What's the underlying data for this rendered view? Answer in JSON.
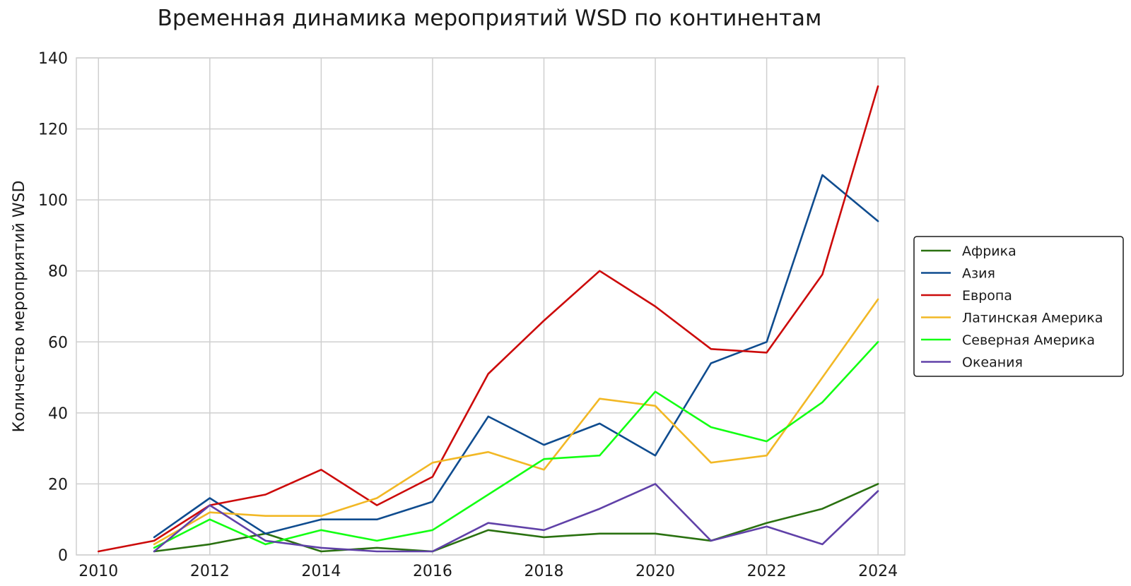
{
  "chart_data": {
    "type": "line",
    "title": "Временная динамика мероприятий WSD по континентам",
    "xlabel": "",
    "ylabel": "Количество мероприятий WSD",
    "xlim": [
      2010,
      2024
    ],
    "ylim": [
      0,
      140
    ],
    "x_ticks": [
      2010,
      2012,
      2014,
      2016,
      2018,
      2020,
      2022,
      2024
    ],
    "y_ticks": [
      0,
      20,
      40,
      60,
      80,
      100,
      120,
      140
    ],
    "grid": true,
    "legend_position": "right",
    "series": [
      {
        "name": "Африка",
        "color": "#2a7110",
        "x": [
          2011,
          2012,
          2013,
          2014,
          2015,
          2016,
          2017,
          2018,
          2019,
          2020,
          2021,
          2022,
          2023,
          2024
        ],
        "values": [
          1,
          3,
          6,
          1,
          2,
          1,
          7,
          5,
          6,
          6,
          4,
          9,
          13,
          20
        ]
      },
      {
        "name": "Азия",
        "color": "#0f4c8f",
        "x": [
          2011,
          2012,
          2013,
          2014,
          2015,
          2016,
          2017,
          2018,
          2019,
          2020,
          2021,
          2022,
          2023,
          2024
        ],
        "values": [
          5,
          16,
          6,
          10,
          10,
          15,
          39,
          31,
          37,
          28,
          54,
          60,
          107,
          94
        ]
      },
      {
        "name": "Европа",
        "color": "#cc0a0a",
        "x": [
          2010,
          2011,
          2012,
          2013,
          2014,
          2015,
          2016,
          2017,
          2018,
          2019,
          2020,
          2021,
          2022,
          2023,
          2024
        ],
        "values": [
          1,
          4,
          14,
          17,
          24,
          14,
          22,
          51,
          66,
          80,
          70,
          58,
          57,
          79,
          132
        ]
      },
      {
        "name": "Латинская Америка",
        "color": "#f2b825",
        "x": [
          2011,
          2012,
          2013,
          2014,
          2015,
          2016,
          2017,
          2018,
          2019,
          2020,
          2021,
          2022,
          2023,
          2024
        ],
        "values": [
          3,
          12,
          11,
          11,
          16,
          26,
          29,
          24,
          44,
          42,
          26,
          28,
          50,
          72
        ]
      },
      {
        "name": "Северная Америка",
        "color": "#13ff13",
        "x": [
          2011,
          2012,
          2013,
          2014,
          2015,
          2016,
          2017,
          2018,
          2019,
          2020,
          2021,
          2022,
          2023,
          2024
        ],
        "values": [
          2,
          10,
          3,
          7,
          4,
          7,
          17,
          27,
          28,
          46,
          36,
          32,
          43,
          60
        ]
      },
      {
        "name": "Океания",
        "color": "#6041a8",
        "x": [
          2011,
          2012,
          2013,
          2014,
          2015,
          2016,
          2017,
          2018,
          2019,
          2020,
          2021,
          2022,
          2023,
          2024
        ],
        "values": [
          1,
          14,
          4,
          2,
          1,
          1,
          9,
          7,
          13,
          20,
          4,
          8,
          3,
          18
        ]
      }
    ]
  }
}
